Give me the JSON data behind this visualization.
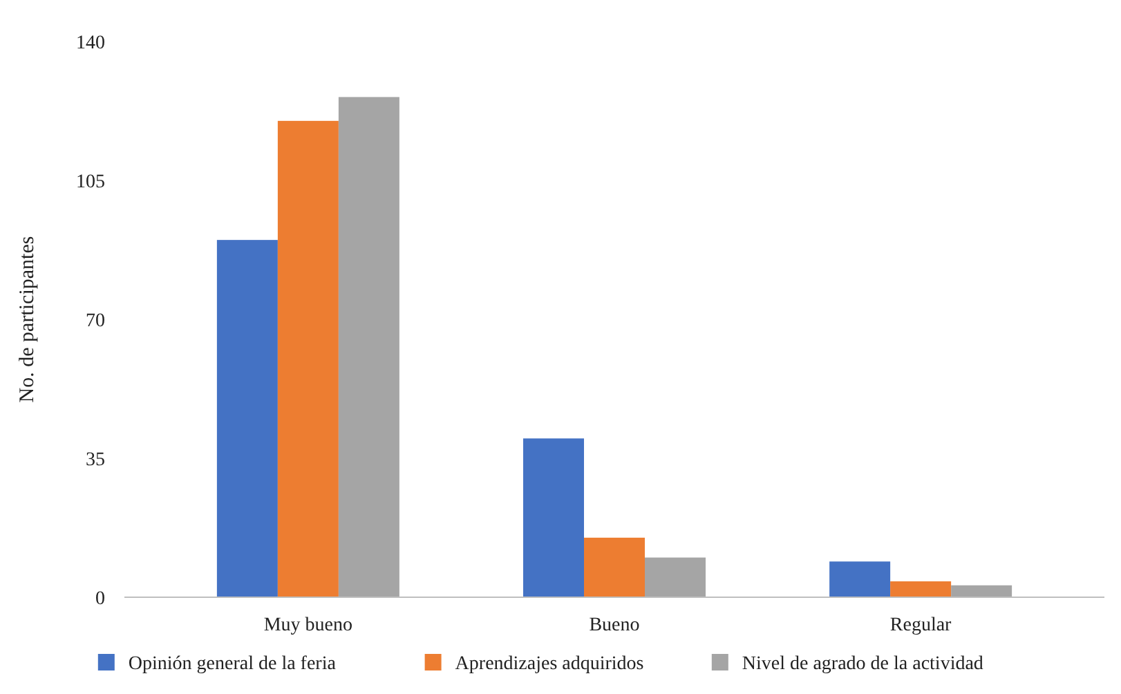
{
  "chart_data": {
    "type": "bar",
    "ylabel": "No. de participantes",
    "categories": [
      "Muy bueno",
      "Bueno",
      "Regular"
    ],
    "ylim": [
      0,
      140
    ],
    "yticks": [
      0,
      35,
      70,
      105,
      140
    ],
    "grid": false,
    "legend": "bottom",
    "series": [
      {
        "name": "Opinión general de la feria",
        "color": "#4472c4",
        "values": [
          90,
          40,
          9
        ]
      },
      {
        "name": "Aprendizajes adquiridos",
        "color": "#ed7d31",
        "values": [
          120,
          15,
          4
        ]
      },
      {
        "name": "Nivel de agrado de la actividad",
        "color": "#a5a5a5",
        "values": [
          126,
          10,
          3
        ]
      }
    ]
  }
}
